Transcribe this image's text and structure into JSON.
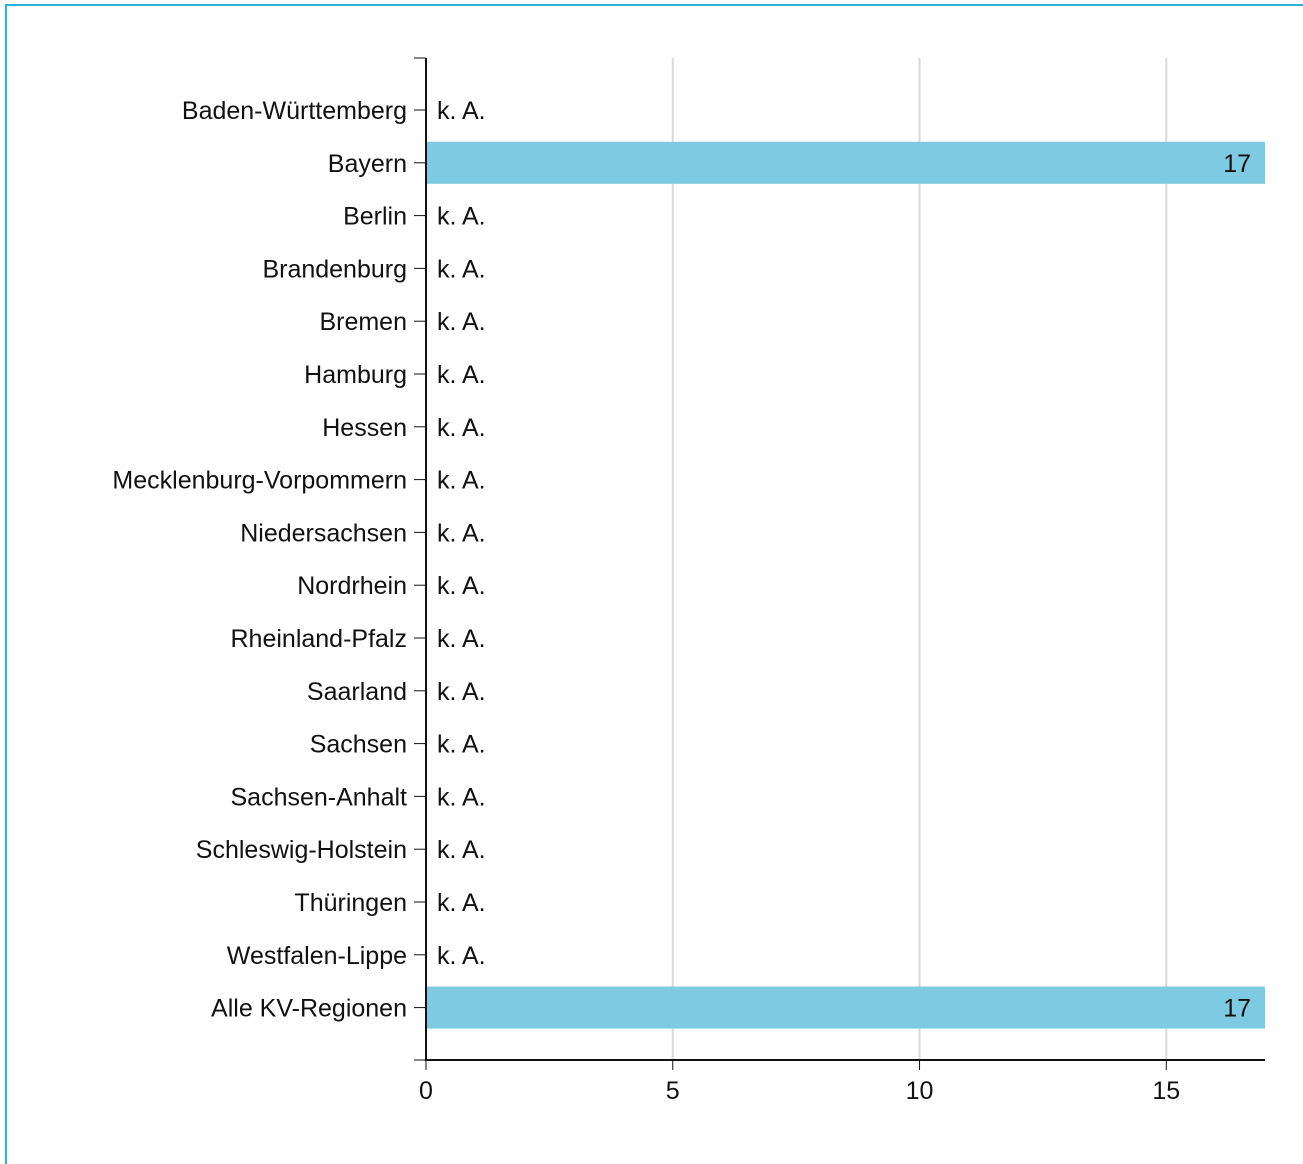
{
  "chart_data": {
    "type": "bar",
    "orientation": "horizontal",
    "title": "",
    "xlabel": "",
    "ylabel": "",
    "categories": [
      "Baden-Württemberg",
      "Bayern",
      "Berlin",
      "Brandenburg",
      "Bremen",
      "Hamburg",
      "Hessen",
      "Mecklenburg-Vorpommern",
      "Niedersachsen",
      "Nordrhein",
      "Rheinland-Pfalz",
      "Saarland",
      "Sachsen",
      "Sachsen-Anhalt",
      "Schleswig-Holstein",
      "Thüringen",
      "Westfalen-Lippe",
      "Alle KV-Regionen"
    ],
    "values": [
      null,
      17,
      null,
      null,
      null,
      null,
      null,
      null,
      null,
      null,
      null,
      null,
      null,
      null,
      null,
      null,
      null,
      17
    ],
    "data_labels": [
      "k. A.",
      "17",
      "k. A.",
      "k. A.",
      "k. A.",
      "k. A.",
      "k. A.",
      "k. A.",
      "k. A.",
      "k. A.",
      "k. A.",
      "k. A.",
      "k. A.",
      "k. A.",
      "k. A.",
      "k. A.",
      "k. A.",
      "17"
    ],
    "xlim": [
      0,
      17
    ],
    "xticks": [
      0,
      5,
      10,
      15
    ],
    "xtick_labels": [
      "0",
      "5",
      "10",
      "15"
    ],
    "grid": true,
    "legend": "none",
    "colors": {
      "bar": "#7ecae2",
      "grid": "#d9d9d9",
      "axis": "#111111",
      "frame": "#29b6d6"
    }
  }
}
